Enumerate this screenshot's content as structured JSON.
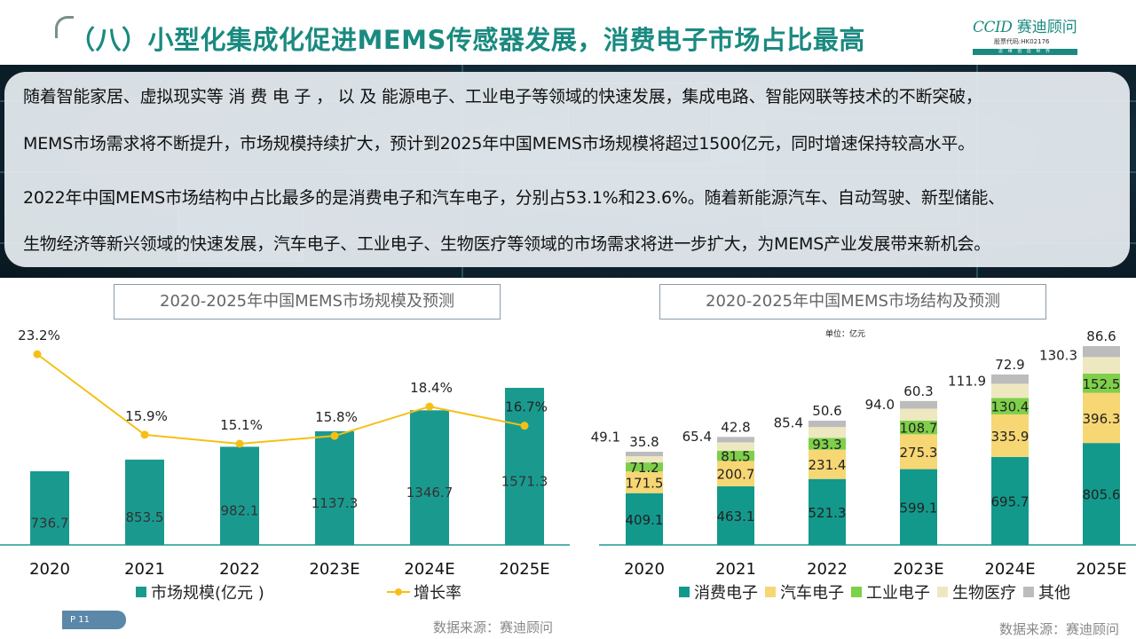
{
  "title": "（八）小型化集成化促进MEMS传感器发展，消费电子市场占比最高",
  "logo": {
    "brand": "CCID",
    "name": "赛迪顾问",
    "stock_code": "股票代码:HK02176",
    "slogan": "思 维 创 造 世 界"
  },
  "paragraphs": [
    "随着智能家居、虚拟现实等 消 费 电 子 ， 以 及 能源电子、工业电子等领域的快速发展，集成电路、智能网联等技术的不断突破，",
    "MEMS市场需求将不断提升，市场规模持续扩大，预计到2025年中国MEMS市场规模将超过1500亿元，同时增速保持较高水平。",
    "2022年中国MEMS市场结构中占比最多的是消费电子和汽车电子，分别占53.1%和23.6%。随着新能源汽车、自动驾驶、新型储能、",
    "生物经济等新兴领域的快速发展，汽车电子、工业电子、生物医疗等领域的市场需求将进一步扩大，为MEMS产业发展带来新机会。"
  ],
  "chart_left_title": "2020-2025年中国MEMS市场规模及预测",
  "chart_right_title": "2020-2025年中国MEMS市场结构及预测",
  "unit_label": "单位：亿元",
  "source_left": "数据来源：赛迪顾问",
  "source_right": "数据来源：赛迪顾问",
  "page_label": "P 11",
  "chart_data": [
    {
      "type": "bar",
      "title": "2020-2025年中国MEMS市场规模及预测",
      "categories": [
        "2020",
        "2021",
        "2022",
        "2023E",
        "2024E",
        "2025E"
      ],
      "series": [
        {
          "name": "市场规模(亿元 )",
          "type": "bar",
          "values": [
            736.7,
            853.5,
            982.1,
            1137.3,
            1346.7,
            1571.3
          ],
          "color": "#1a9a8f"
        },
        {
          "name": "增长率",
          "type": "line",
          "values": [
            23.2,
            15.9,
            15.1,
            15.8,
            18.4,
            16.7
          ],
          "unit": "%",
          "color": "#f5c016"
        }
      ],
      "value_labels": [
        "736.7",
        "853.5",
        "982.1",
        "1137.3",
        "1346.7",
        "1571.3"
      ],
      "rate_labels": [
        "23.2%",
        "15.9%",
        "15.1%",
        "15.8%",
        "18.4%",
        "16.7%"
      ],
      "legend": [
        "市场规模(亿元 )",
        "增长率"
      ],
      "legend_position": "bottom",
      "grid": false
    },
    {
      "type": "bar",
      "stacked": true,
      "title": "2020-2025年中国MEMS市场结构及预测",
      "unit": "单位：亿元",
      "categories": [
        "2020",
        "2021",
        "2022",
        "2023E",
        "2024E",
        "2025E"
      ],
      "series": [
        {
          "name": "消费电子",
          "values": [
            409.1,
            463.1,
            521.3,
            599.1,
            695.7,
            805.6
          ],
          "color": "#12998c"
        },
        {
          "name": "汽车电子",
          "values": [
            171.5,
            200.7,
            231.4,
            275.3,
            335.9,
            396.3
          ],
          "color": "#f7d774"
        },
        {
          "name": "工业电子",
          "values": [
            71.2,
            81.5,
            93.3,
            108.7,
            130.4,
            152.5
          ],
          "color": "#7fcf4a"
        },
        {
          "name": "生物医疗",
          "values": [
            49.1,
            65.4,
            85.4,
            94.0,
            111.9,
            130.3
          ],
          "color": "#eee8c0"
        },
        {
          "name": "其他",
          "values": [
            35.8,
            42.8,
            50.6,
            60.3,
            72.9,
            86.6
          ],
          "color": "#bcbcbc"
        }
      ],
      "labels": {
        "消费电子": [
          "409.1",
          "463.1",
          "521.3",
          "599.1",
          "695.7",
          "805.6"
        ],
        "汽车电子": [
          "171.5",
          "200.7",
          "231.4",
          "275.3",
          "335.9",
          "396.3"
        ],
        "工业电子": [
          "71.2",
          "81.5",
          "93.3",
          "108.7",
          "130.4",
          "152.5"
        ],
        "生物医疗": [
          "49.1",
          "65.4",
          "85.4",
          "94.0",
          "111.9",
          "130.3"
        ],
        "其他": [
          "35.8",
          "42.8",
          "50.6",
          "60.3",
          "72.9",
          "86.6"
        ]
      },
      "legend": [
        "消费电子",
        "汽车电子",
        "工业电子",
        "生物医疗",
        "其他"
      ],
      "legend_position": "bottom",
      "grid": false
    }
  ],
  "colors": {
    "accent": "#1a8a80",
    "bar": "#1a9a8f",
    "rate_line": "#f5c016"
  }
}
